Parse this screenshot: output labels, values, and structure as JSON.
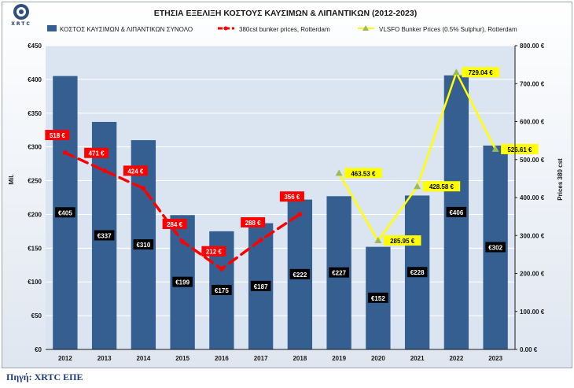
{
  "source_note": "Πηγή: XRTC ΕΠΕ",
  "logo_text": "XRTC",
  "chart_data": {
    "type": "bar",
    "title": "ΕΤΗΣΙΑ ΕΞΕΛΙΞΗ ΚΟΣΤΟΥΣ ΚΑΥΣΙΜΩΝ & ΛΙΠΑΝΤΙΚΩΝ (2012-2023)",
    "categories": [
      "2012",
      "2013",
      "2014",
      "2015",
      "2016",
      "2017",
      "2018",
      "2019",
      "2020",
      "2021",
      "2022",
      "2023"
    ],
    "ylabel": "Mil.",
    "y2label": "Prices 380 cst",
    "ylim": [
      0,
      450
    ],
    "y2lim": [
      0,
      800
    ],
    "yticks": [
      "€0",
      "€50",
      "€100",
      "€150",
      "€200",
      "€250",
      "€300",
      "€350",
      "€400",
      "€450"
    ],
    "y2ticks": [
      "0.00 €",
      "100.00 €",
      "200.00 €",
      "300.00 €",
      "400.00 €",
      "500.00 €",
      "600.00 €",
      "700.00 €",
      "800.00 €"
    ],
    "series": [
      {
        "name": "ΚΟΣΤΟΣ ΚΑΥΣΙΜΩΝ & ΛΙΠΑΝΤΙΚΩΝ ΣΥΝΟΛΟ",
        "type": "bar",
        "axis": "left",
        "color": "#365f91",
        "values": [
          405,
          337,
          310,
          199,
          175,
          187,
          222,
          227,
          152,
          228,
          406,
          302
        ],
        "labels": [
          "€405",
          "€337",
          "€310",
          "€199",
          "€175",
          "€187",
          "€222",
          "€227",
          "€152",
          "€228",
          "€406",
          "€302"
        ]
      },
      {
        "name": "380cst bunker prices, Rotterdam",
        "type": "line",
        "axis": "right",
        "color": "#ff0000",
        "values": [
          518,
          471,
          424,
          284,
          212,
          288,
          356,
          null,
          null,
          null,
          null,
          null
        ],
        "labels": [
          "518 €",
          "471 €",
          "424 €",
          "284 €",
          "212 €",
          "288 €",
          "356 €",
          "",
          "",
          "",
          "",
          ""
        ]
      },
      {
        "name": "VLSFO Bunker Prices (0.5% Sulphur), Rotterdam",
        "type": "line",
        "axis": "right",
        "color": "#ffff00",
        "marker_color": "#9bbb59",
        "values": [
          null,
          null,
          null,
          null,
          null,
          null,
          null,
          463.53,
          285.95,
          428.58,
          729.04,
          526.61
        ],
        "labels": [
          "",
          "",
          "",
          "",
          "",
          "",
          "",
          "463.53 €",
          "285.95 €",
          "428.58 €",
          "729.04 €",
          "526.61 €"
        ]
      }
    ]
  }
}
